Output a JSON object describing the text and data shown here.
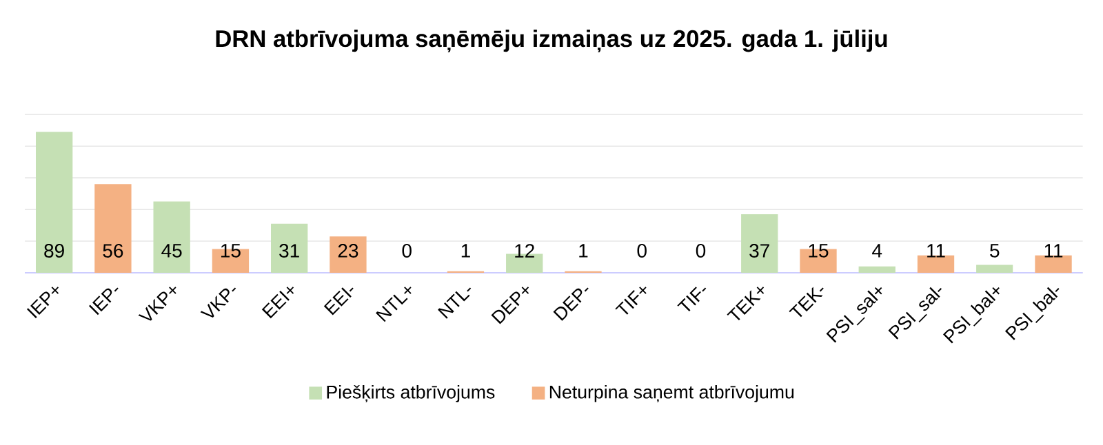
{
  "chart_data": {
    "type": "bar",
    "title": "DRN atbrīvojuma saņēmēju izmaiņas uz 2025. gada 1. jūliju",
    "categories": [
      "IEP+",
      "IEP-",
      "VKP+",
      "VKP-",
      "EEI+",
      "EEI-",
      "NTL+",
      "NTL-",
      "DEP+",
      "DEP-",
      "TIF+",
      "TIF-",
      "TEK+",
      "TEK-",
      "PSI_sal+",
      "PSI_sal-",
      "PSI_bal+",
      "PSI_bal-"
    ],
    "series": [
      {
        "name": "Piešķirts atbrīvojums",
        "color": "#c5e0b4",
        "values": [
          89,
          null,
          45,
          null,
          31,
          null,
          0,
          null,
          12,
          null,
          0,
          null,
          37,
          null,
          4,
          null,
          5,
          null
        ]
      },
      {
        "name": "Neturpina saņemt atbrīvojumu",
        "color": "#f4b183",
        "values": [
          null,
          56,
          null,
          15,
          null,
          23,
          null,
          1,
          null,
          1,
          null,
          0,
          null,
          15,
          null,
          11,
          null,
          11
        ]
      }
    ],
    "tick_labels": "x",
    "grid": "y",
    "legend": "bottom",
    "data_labels": true
  }
}
